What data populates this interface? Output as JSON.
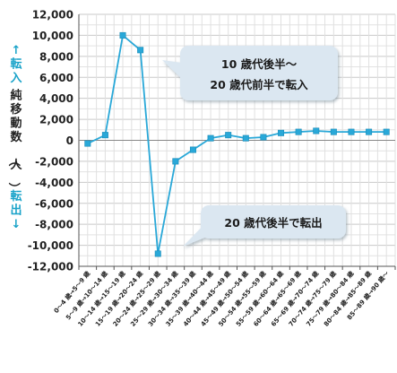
{
  "chart_data": {
    "type": "line",
    "categories": [
      "0～4 歳→5～9 歳",
      "5～9 歳→10～14 歳",
      "10～14 歳→15～19 歳",
      "15～19 歳→20～24 歳",
      "20～24 歳→25～29 歳",
      "25～29 歳→30～34 歳",
      "30～34 歳→35～39 歳",
      "35～39 歳→40～44 歳",
      "40～44 歳→45～49 歳",
      "45～49 歳→50～54 歳",
      "50～54 歳→55～59 歳",
      "55～59 歳→60～64 歳",
      "60～64 歳→65～69 歳",
      "65～69 歳→70～74 歳",
      "70～74 歳→75～79 歳",
      "75～79 歳→80～84 歳",
      "80～84 歳→85～89 歳",
      "85～89 歳→90 歳～"
    ],
    "series": [
      {
        "values": [
          -300,
          500,
          10000,
          8600,
          -10800,
          -2000,
          -900,
          200,
          500,
          200,
          300,
          700,
          800,
          900,
          800,
          800,
          800,
          800
        ]
      }
    ],
    "ylim": [
      -12000,
      12000
    ],
    "yticks": [
      "12,000",
      "10,000",
      "8,000",
      "6,000",
      "4,000",
      "2,000",
      "0",
      "-2,000",
      "-4,000",
      "-6,000",
      "-8,000",
      "-10,000",
      "-12,000"
    ],
    "ylabel_up": "↑転入",
    "ylabel_main": "純移動数（人）",
    "ylabel_down": "転出↓",
    "grid": true,
    "line_color": "#29a8d8",
    "marker_color": "#29a8d8",
    "annotations": [
      {
        "lines": [
          "10 歳代後半～",
          "20 歳代前半で転入"
        ]
      },
      {
        "lines": [
          "20 歳代後半で転出"
        ]
      }
    ]
  }
}
